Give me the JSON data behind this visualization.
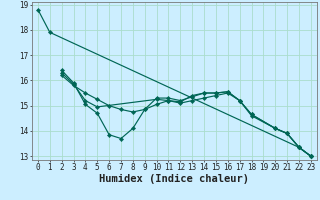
{
  "xlabel": "Humidex (Indice chaleur)",
  "background_color": "#cceeff",
  "grid_color": "#aaddcc",
  "line_color": "#006655",
  "series": [
    {
      "x": [
        0,
        1,
        22,
        23
      ],
      "y": [
        18.8,
        17.9,
        13.35,
        13.0
      ]
    },
    {
      "x": [
        2,
        3,
        4,
        5,
        6,
        7,
        8,
        9,
        10,
        11,
        12,
        13,
        14,
        15,
        16,
        17,
        18,
        20,
        21,
        22,
        23
      ],
      "y": [
        16.4,
        15.9,
        15.05,
        14.7,
        13.85,
        13.7,
        14.1,
        14.85,
        15.3,
        15.3,
        15.2,
        15.35,
        15.5,
        15.5,
        15.55,
        15.2,
        14.65,
        14.1,
        13.9,
        13.35,
        13.0
      ]
    },
    {
      "x": [
        2,
        3,
        4,
        5,
        6,
        7,
        8,
        9,
        10,
        11,
        12,
        13,
        14,
        15,
        16,
        17,
        18,
        20,
        21,
        22,
        23
      ],
      "y": [
        16.2,
        15.8,
        15.5,
        15.25,
        15.0,
        14.85,
        14.75,
        14.85,
        15.05,
        15.2,
        15.1,
        15.2,
        15.3,
        15.4,
        15.5,
        15.2,
        14.65,
        14.1,
        13.9,
        13.35,
        13.0
      ]
    },
    {
      "x": [
        2,
        3,
        4,
        5,
        10,
        11,
        12,
        13,
        14,
        15,
        16,
        17,
        18,
        20,
        21,
        22,
        23
      ],
      "y": [
        16.3,
        15.85,
        15.2,
        14.95,
        15.25,
        15.2,
        15.15,
        15.4,
        15.5,
        15.5,
        15.55,
        15.2,
        14.6,
        14.1,
        13.9,
        13.35,
        13.0
      ]
    }
  ],
  "xlim": [
    -0.5,
    23.5
  ],
  "ylim": [
    12.85,
    19.1
  ],
  "yticks": [
    13,
    14,
    15,
    16,
    17,
    18,
    19
  ],
  "xtick_labels": [
    "0",
    "1",
    "2",
    "3",
    "4",
    "5",
    "6",
    "7",
    "8",
    "9",
    "10",
    "11",
    "12",
    "13",
    "14",
    "15",
    "16",
    "17",
    "18",
    "19",
    "20",
    "21",
    "22",
    "23"
  ],
  "tick_fontsize": 5.5,
  "xlabel_fontsize": 7.5
}
